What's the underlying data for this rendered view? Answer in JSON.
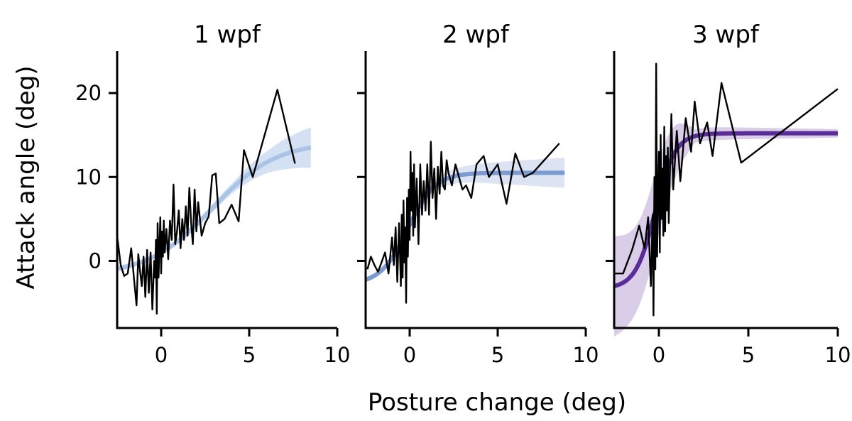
{
  "chart_data": {
    "type": "line",
    "xlabel": "Posture change (deg)",
    "ylabel": "Attack angle (deg)",
    "xlim": [
      -2.5,
      10
    ],
    "ylim": [
      -8,
      25
    ],
    "xticks": [
      0,
      5,
      10
    ],
    "xtick_labels": [
      "0",
      "5",
      "10"
    ],
    "yticks": [
      0,
      10,
      20
    ],
    "ytick_labels": [
      "0",
      "10",
      "20"
    ],
    "grid": false,
    "panels": [
      {
        "title": "1 wpf",
        "fit_color": "#aac4e8",
        "band_color": "#c9d9f0",
        "fit": {
          "type": "logistic",
          "bottom": -1.7,
          "top": 14.2,
          "x50": 2.9,
          "slope": 0.55,
          "x_range": [
            -2.5,
            8.5
          ]
        },
        "band_halfwidth": {
          "x": [
            -2.5,
            0,
            2,
            4,
            6,
            7,
            8.5
          ],
          "y": [
            0.3,
            0.3,
            0.4,
            0.6,
            1.3,
            1.8,
            2.4
          ]
        },
        "raw": {
          "x": [
            -2.5,
            -2.3,
            -2.1,
            -1.9,
            -1.7,
            -1.55,
            -1.4,
            -1.3,
            -1.2,
            -1.1,
            -1.0,
            -0.9,
            -0.8,
            -0.7,
            -0.6,
            -0.5,
            -0.4,
            -0.35,
            -0.3,
            -0.25,
            -0.2,
            -0.15,
            -0.1,
            -0.05,
            0.0,
            0.05,
            0.1,
            0.15,
            0.2,
            0.3,
            0.4,
            0.5,
            0.6,
            0.7,
            0.8,
            0.9,
            1.0,
            1.1,
            1.2,
            1.3,
            1.4,
            1.5,
            1.6,
            1.7,
            1.8,
            1.9,
            2.0,
            2.1,
            2.2,
            2.3,
            2.5,
            2.7,
            2.9,
            3.1,
            3.3,
            3.6,
            4.0,
            4.4,
            4.7,
            5.2,
            6.6,
            7.6
          ],
          "y": [
            3.0,
            -0.5,
            -1.8,
            -1.5,
            1.5,
            -2.0,
            -5.3,
            0.8,
            -1.2,
            -3.0,
            0.5,
            -4.3,
            1.3,
            -3.8,
            1.0,
            -5.8,
            0.0,
            -2.0,
            2.5,
            -6.3,
            4.5,
            -2.0,
            1.5,
            5.2,
            -1.5,
            3.5,
            0.5,
            4.8,
            1.0,
            3.8,
            0.2,
            4.8,
            2.5,
            9.1,
            2.0,
            3.5,
            6.0,
            1.5,
            5.0,
            2.5,
            6.5,
            3.0,
            8.7,
            4.5,
            2.0,
            8.5,
            3.5,
            7.0,
            5.0,
            3.0,
            4.5,
            5.3,
            10.2,
            10.4,
            4.5,
            5.0,
            6.7,
            4.7,
            13.2,
            10.0,
            20.4,
            11.6
          ]
        }
      },
      {
        "title": "2 wpf",
        "fit_color": "#7a9ad0",
        "band_color": "#d3ddf0",
        "fit": {
          "type": "logistic",
          "bottom": -2.8,
          "top": 10.5,
          "x50": -0.1,
          "slope": 1.3,
          "x_range": [
            -2.5,
            8.8
          ]
        },
        "band_halfwidth": {
          "x": [
            -2.5,
            0,
            2,
            5,
            8.8
          ],
          "y": [
            0.3,
            0.4,
            0.8,
            1.3,
            1.8
          ]
        },
        "raw": {
          "x": [
            -2.4,
            -2.2,
            -2.0,
            -1.8,
            -1.6,
            -1.4,
            -1.2,
            -1.0,
            -0.9,
            -0.8,
            -0.7,
            -0.6,
            -0.5,
            -0.45,
            -0.4,
            -0.35,
            -0.3,
            -0.25,
            -0.2,
            -0.15,
            -0.1,
            -0.05,
            0.0,
            0.05,
            0.1,
            0.15,
            0.2,
            0.25,
            0.3,
            0.4,
            0.5,
            0.6,
            0.7,
            0.8,
            0.9,
            1.0,
            1.1,
            1.2,
            1.3,
            1.4,
            1.5,
            1.6,
            1.7,
            1.8,
            1.9,
            2.0,
            2.1,
            2.2,
            2.4,
            2.6,
            2.8,
            3.0,
            3.2,
            3.5,
            3.8,
            4.2,
            4.5,
            5.0,
            5.5,
            6.0,
            6.5,
            7.0,
            8.5
          ],
          "y": [
            -1.0,
            0.5,
            -0.5,
            -1.3,
            -0.2,
            1.0,
            -1.5,
            2.8,
            -0.5,
            4.0,
            -2.5,
            4.5,
            -3.0,
            5.5,
            -2.0,
            7.2,
            -0.2,
            4.0,
            -5.0,
            7.5,
            0.5,
            8.5,
            2.5,
            13.0,
            6.0,
            10.5,
            3.0,
            11.5,
            4.0,
            9.8,
            2.0,
            11.5,
            5.5,
            9.5,
            6.0,
            11.5,
            5.5,
            14.2,
            7.5,
            11.0,
            5.0,
            11.2,
            8.0,
            13.0,
            9.0,
            8.5,
            12.0,
            10.5,
            9.0,
            11.5,
            10.0,
            8.5,
            9.0,
            7.5,
            11.5,
            12.5,
            10.0,
            11.5,
            6.8,
            12.8,
            10.0,
            10.5,
            14.0
          ]
        }
      },
      {
        "title": "3 wpf",
        "fit_color": "#5b2d9a",
        "band_color": "#cfc0e2",
        "fit": {
          "type": "logistic",
          "bottom": -3.3,
          "top": 15.2,
          "x50": -0.2,
          "slope": 1.8,
          "x_range": [
            -2.5,
            10
          ]
        },
        "band_halfwidth": {
          "x": [
            -2.5,
            -1.0,
            0.0,
            1.0,
            2.0,
            10.0
          ],
          "y": [
            6.0,
            5.0,
            4.5,
            3.0,
            0.8,
            0.5
          ]
        },
        "raw": {
          "x": [
            -2.5,
            -2.0,
            -1.5,
            -1.1,
            -0.8,
            -0.6,
            -0.45,
            -0.35,
            -0.3,
            -0.25,
            -0.2,
            -0.15,
            -0.1,
            -0.05,
            0.0,
            0.05,
            0.1,
            0.15,
            0.2,
            0.25,
            0.3,
            0.35,
            0.4,
            0.45,
            0.5,
            0.55,
            0.6,
            0.7,
            0.8,
            1.0,
            1.2,
            1.5,
            1.8,
            2.0,
            2.3,
            2.7,
            3.0,
            3.5,
            4.6,
            10.0
          ],
          "y": [
            -1.5,
            -1.5,
            1.3,
            4.2,
            1.5,
            5.2,
            -3.0,
            5.5,
            -6.5,
            10.0,
            -1.0,
            23.5,
            0.5,
            7.5,
            13.0,
            1.0,
            15.0,
            5.0,
            11.0,
            3.0,
            16.0,
            3.5,
            12.5,
            6.0,
            13.5,
            4.5,
            9.0,
            17.5,
            8.5,
            15.5,
            9.5,
            17.0,
            13.0,
            19.0,
            14.0,
            16.5,
            12.5,
            21.2,
            11.7,
            20.5
          ]
        }
      }
    ]
  }
}
